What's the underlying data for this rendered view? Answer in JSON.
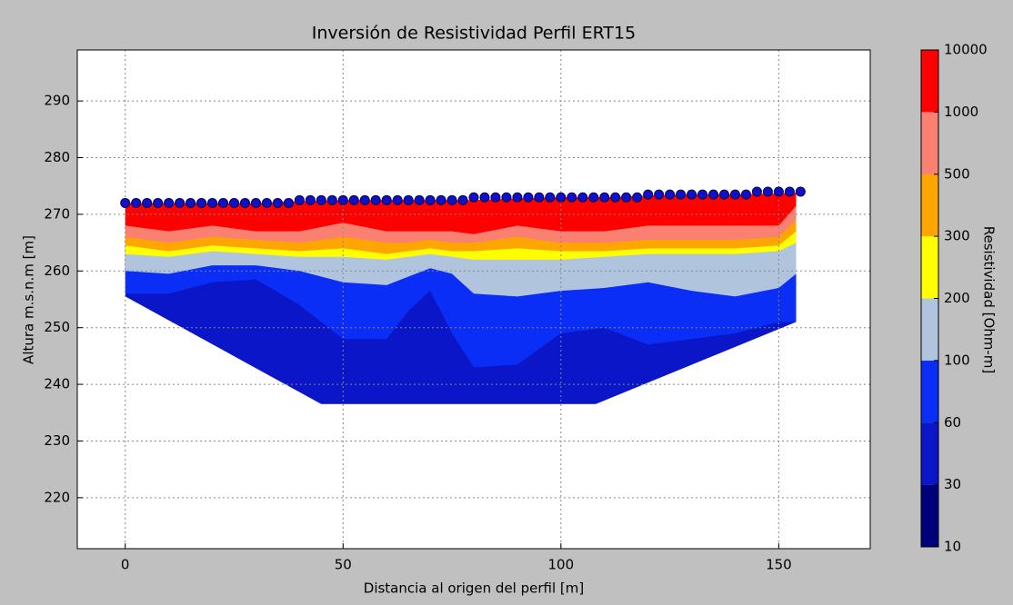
{
  "chart_data": {
    "type": "contour",
    "title": "Inversión de Resistividad Perfil ERT15",
    "xlabel": "Distancia al origen del perfil [m]",
    "ylabel": "Altura m.s.n.m [m]",
    "xlim": [
      -11,
      171
    ],
    "ylim": [
      211,
      299
    ],
    "xticks": [
      0,
      50,
      100,
      150
    ],
    "yticks": [
      220,
      230,
      240,
      250,
      260,
      270,
      280,
      290
    ],
    "grid": true,
    "colorbar": {
      "label": "Resistividad [Ohm-m]",
      "levels": [
        10,
        30,
        60,
        100,
        200,
        300,
        500,
        1000,
        10000
      ],
      "colors": [
        "#00007a",
        "#0a16c8",
        "#0a2ef5",
        "#b0c4de",
        "#ffff00",
        "#ffa500",
        "#fa8072",
        "#ff0000"
      ]
    },
    "grid_x": [
      0,
      10,
      20,
      30,
      40,
      50,
      60,
      65,
      70,
      75,
      80,
      90,
      100,
      110,
      120,
      130,
      140,
      150,
      154
    ],
    "surface": [
      272,
      272,
      272,
      272,
      272.3,
      272.5,
      272.5,
      272.5,
      272.5,
      272.5,
      272.5,
      272.8,
      273,
      273,
      273.3,
      273.5,
      273.5,
      273.7,
      273.8
    ],
    "domain": {
      "level": 30,
      "x": [
        0,
        45,
        108,
        154
      ],
      "y": [
        255.5,
        236.5,
        236.5,
        251
      ]
    },
    "contours": [
      {
        "level": 60,
        "y": [
          256,
          256,
          258,
          258.5,
          254,
          248,
          248,
          253,
          256.5,
          249,
          243,
          243.5,
          249,
          250,
          247,
          248,
          249,
          251,
          251
        ]
      },
      {
        "level": 100,
        "y": [
          260,
          259.5,
          261,
          261,
          260,
          258,
          257.5,
          259,
          260.5,
          259.5,
          256,
          255.5,
          256.5,
          257,
          258,
          256.5,
          255.5,
          257,
          259.5
        ]
      },
      {
        "level": 200,
        "y": [
          263,
          262.5,
          263.5,
          263,
          262.5,
          262.5,
          262,
          262.5,
          263,
          262.5,
          262,
          262,
          262,
          262.5,
          263,
          263,
          263,
          263.5,
          265
        ]
      },
      {
        "level": 300,
        "y": [
          264.5,
          263.5,
          264.5,
          264,
          263.5,
          264,
          263,
          263.5,
          264,
          263.5,
          263.5,
          264,
          263.5,
          263.5,
          264,
          264,
          264,
          264.5,
          267
        ]
      },
      {
        "level": 500,
        "y": [
          266,
          265,
          266,
          265.5,
          265,
          266,
          265,
          265,
          265.5,
          265,
          265,
          266,
          265,
          265,
          265.5,
          265.5,
          265.5,
          266,
          269
        ]
      },
      {
        "level": 1000,
        "y": [
          268,
          267,
          268,
          267,
          267,
          268.5,
          267,
          267,
          267,
          267,
          266.5,
          268,
          267,
          267,
          268,
          268,
          268,
          268,
          271.5
        ]
      }
    ],
    "electrodes": {
      "color": "#1010c8",
      "x": [
        0,
        2.5,
        5,
        7.5,
        10,
        12.5,
        15,
        17.5,
        20,
        22.5,
        25,
        27.5,
        30,
        32.5,
        35,
        37.5,
        40,
        42.5,
        45,
        47.5,
        50,
        52.5,
        55,
        57.5,
        60,
        62.5,
        65,
        67.5,
        70,
        72.5,
        75,
        77.5,
        80,
        82.5,
        85,
        87.5,
        90,
        92.5,
        95,
        97.5,
        100,
        102.5,
        105,
        107.5,
        110,
        112.5,
        115,
        117.5,
        120,
        122.5,
        125,
        127.5,
        130,
        132.5,
        135,
        137.5,
        140,
        142.5,
        145,
        147.5,
        150,
        152.5,
        155
      ],
      "y": [
        272,
        272,
        272,
        272,
        272,
        272,
        272,
        272,
        272,
        272,
        272,
        272,
        272,
        272,
        272,
        272,
        272.5,
        272.5,
        272.5,
        272.5,
        272.5,
        272.5,
        272.5,
        272.5,
        272.5,
        272.5,
        272.5,
        272.5,
        272.5,
        272.5,
        272.5,
        272.5,
        273,
        273,
        273,
        273,
        273,
        273,
        273,
        273,
        273,
        273,
        273,
        273,
        273,
        273,
        273,
        273,
        273.5,
        273.5,
        273.5,
        273.5,
        273.5,
        273.5,
        273.5,
        273.5,
        273.5,
        273.5,
        274,
        274,
        274,
        274,
        274
      ]
    }
  }
}
